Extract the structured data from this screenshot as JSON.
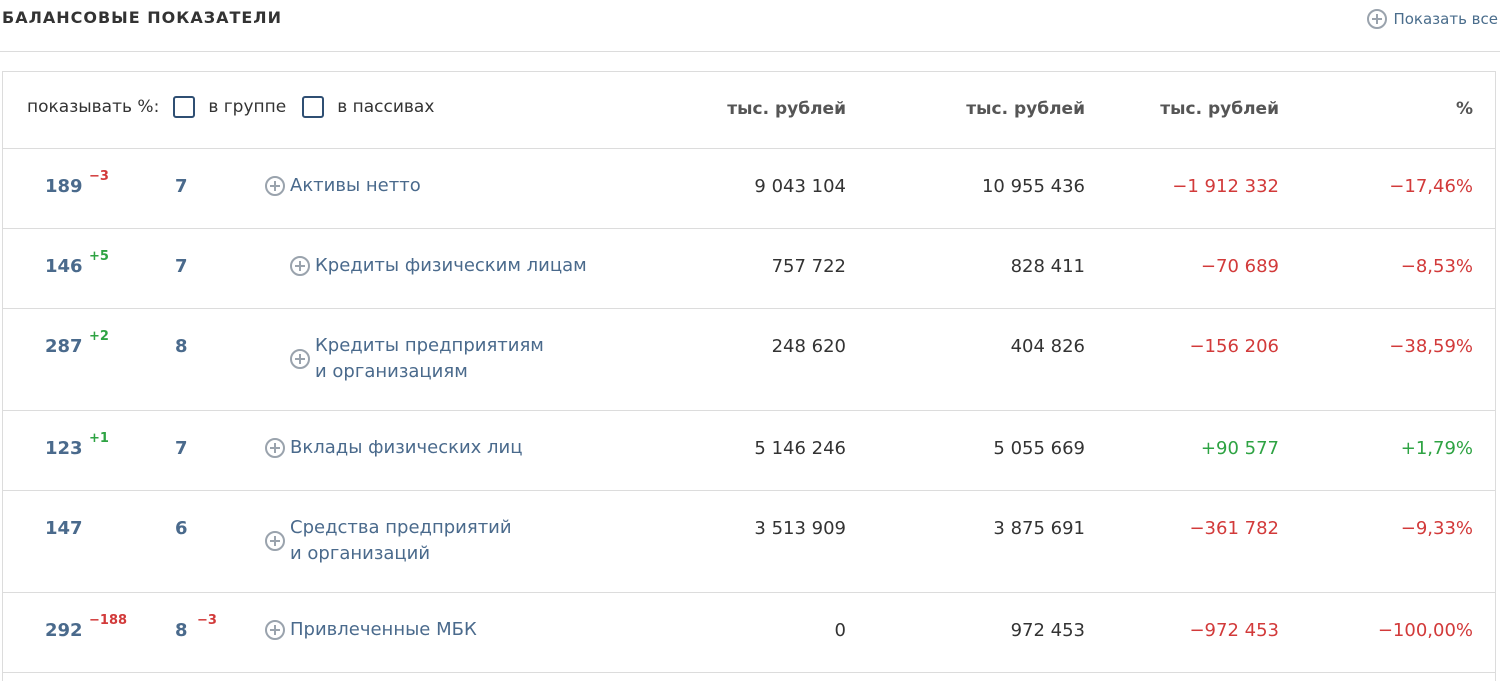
{
  "header": {
    "title": "БАЛАНСОВЫЕ ПОКАЗАТЕЛИ",
    "show_all": "Показать все"
  },
  "table": {
    "filter_label": "показывать %:",
    "checkbox_group": "в группе",
    "checkbox_liabilities": "в пассивах",
    "col_headers": [
      "тыс. рублей",
      "тыс. рублей",
      "тыс. рублей",
      "%"
    ],
    "rows": [
      {
        "rank": "189",
        "rank_delta": "−3",
        "count": "7",
        "count_delta": "",
        "name": "Активы нетто",
        "v1": "9 043 104",
        "v2": "10 955 436",
        "diff": "−1 912 332",
        "pct": "−17,46%"
      },
      {
        "rank": "146",
        "rank_delta": "+5",
        "count": "7",
        "count_delta": "",
        "name": "Кредиты физическим лицам",
        "v1": "757 722",
        "v2": "828 411",
        "diff": "−70 689",
        "pct": "−8,53%"
      },
      {
        "rank": "287",
        "rank_delta": "+2",
        "count": "8",
        "count_delta": "",
        "name": "Кредиты предприятиям и организациям",
        "v1": "248 620",
        "v2": "404 826",
        "diff": "−156 206",
        "pct": "−38,59%"
      },
      {
        "rank": "123",
        "rank_delta": "+1",
        "count": "7",
        "count_delta": "",
        "name": "Вклады физических лиц",
        "v1": "5 146 246",
        "v2": "5 055 669",
        "diff": "+90 577",
        "pct": "+1,79%"
      },
      {
        "rank": "147",
        "rank_delta": "",
        "count": "6",
        "count_delta": "",
        "name": "Средства предприятий и организаций",
        "v1": "3 513 909",
        "v2": "3 875 691",
        "diff": "−361 782",
        "pct": "−9,33%"
      },
      {
        "rank": "292",
        "rank_delta": "−188",
        "count": "8",
        "count_delta": "−3",
        "name": "Привлеченные МБК",
        "v1": "0",
        "v2": "972 453",
        "diff": "−972 453",
        "pct": "−100,00%"
      }
    ]
  },
  "colors": {
    "negative": "#d23a3a",
    "positive": "#2ea343",
    "link": "#4a6a8c",
    "border": "#dcdcdc"
  }
}
